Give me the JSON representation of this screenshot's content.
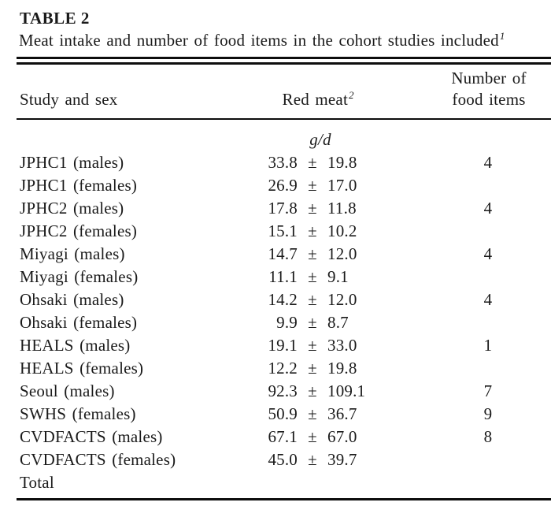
{
  "page": {
    "background": "#ffffff",
    "text_color": "#1a1a1a",
    "rule_color": "#0d0d0d"
  },
  "table": {
    "label": "TABLE 2",
    "caption": "Meat intake and number of food items in the cohort studies included",
    "caption_marker": "1",
    "header": {
      "study": "Study and sex",
      "red_meat": "Red meat",
      "red_meat_marker": "2",
      "items_line1": "Number of",
      "items_line2": "food items"
    },
    "unit": "g/d",
    "rows": [
      {
        "study": "JPHC1 (males)",
        "mean": "33.8",
        "pm": "±",
        "sd": "19.8",
        "items": "4"
      },
      {
        "study": "JPHC1 (females)",
        "mean": "26.9",
        "pm": "±",
        "sd": "17.0",
        "items": ""
      },
      {
        "study": "JPHC2 (males)",
        "mean": "17.8",
        "pm": "±",
        "sd": "11.8",
        "items": "4"
      },
      {
        "study": "JPHC2 (females)",
        "mean": "15.1",
        "pm": "±",
        "sd": "10.2",
        "items": ""
      },
      {
        "study": "Miyagi (males)",
        "mean": "14.7",
        "pm": "±",
        "sd": "12.0",
        "items": "4"
      },
      {
        "study": "Miyagi (females)",
        "mean": "11.1",
        "pm": "±",
        "sd": "9.1",
        "items": ""
      },
      {
        "study": "Ohsaki (males)",
        "mean": "14.2",
        "pm": "±",
        "sd": "12.0",
        "items": "4"
      },
      {
        "study": "Ohsaki (females)",
        "mean": "9.9",
        "pm": "±",
        "sd": "8.7",
        "items": ""
      },
      {
        "study": "HEALS (males)",
        "mean": "19.1",
        "pm": "±",
        "sd": "33.0",
        "items": "1"
      },
      {
        "study": "HEALS (females)",
        "mean": "12.2",
        "pm": "±",
        "sd": "19.8",
        "items": ""
      },
      {
        "study": "Seoul (males)",
        "mean": "92.3",
        "pm": "±",
        "sd": "109.1",
        "items": "7"
      },
      {
        "study": "SWHS (females)",
        "mean": "50.9",
        "pm": "±",
        "sd": "36.7",
        "items": "9"
      },
      {
        "study": "CVDFACTS (males)",
        "mean": "67.1",
        "pm": "±",
        "sd": "67.0",
        "items": "8"
      },
      {
        "study": "CVDFACTS (females)",
        "mean": "45.0",
        "pm": "±",
        "sd": "39.7",
        "items": ""
      }
    ],
    "total_label": "Total"
  }
}
